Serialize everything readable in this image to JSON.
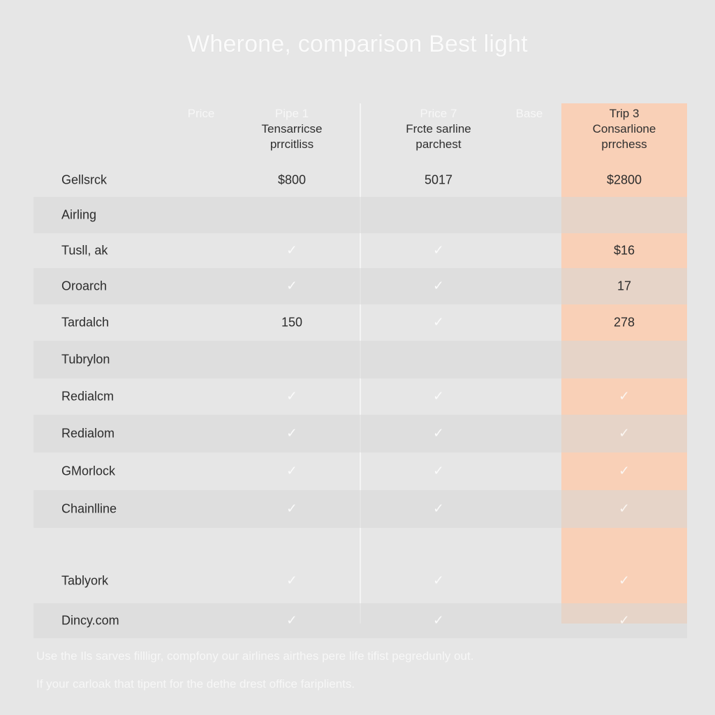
{
  "title": "Wherone, comparison Best light",
  "header": {
    "price_label": "Price",
    "base_label": "Base",
    "columns": [
      {
        "kicker": "Pipe 1",
        "line1": "Tensarricse",
        "line2": "prrcitliss"
      },
      {
        "kicker": "Price 7",
        "line1": "Frcte sarline",
        "line2": "parchest"
      },
      {
        "kicker": "Trip 3",
        "line1": "Consarlione",
        "line2": "prrchess"
      }
    ]
  },
  "rows": [
    {
      "label": "Gellsrck",
      "values": [
        "$800",
        "5017",
        "$2800"
      ]
    },
    {
      "label": "Airling",
      "values": [
        "",
        "",
        ""
      ]
    },
    {
      "label": "Tusll, ak",
      "values": [
        "✓",
        "✓",
        "$16"
      ]
    },
    {
      "label": "Oroarch",
      "values": [
        "✓",
        "✓",
        "17"
      ]
    },
    {
      "label": "Tardalch",
      "values": [
        "150",
        "✓",
        "278"
      ]
    },
    {
      "label": "Tubrylon",
      "values": [
        "",
        "",
        ""
      ]
    },
    {
      "label": "Redialcm",
      "values": [
        "✓",
        "✓",
        "✓"
      ]
    },
    {
      "label": "Redialom",
      "values": [
        "✓",
        "✓",
        "✓"
      ]
    },
    {
      "label": "GMorlock",
      "values": [
        "✓",
        "✓",
        "✓"
      ]
    },
    {
      "label": "Chainlline",
      "values": [
        "✓",
        "✓",
        "✓"
      ]
    },
    {
      "label": "Tablyork",
      "values": [
        "✓",
        "✓",
        "✓"
      ]
    },
    {
      "label": "Dincy.com",
      "values": [
        "✓",
        "✓",
        "✓"
      ]
    }
  ],
  "footer": {
    "line1": "Use the Ils sarves fillligr, compfony our airlines airthes pere life tifist pegredunly out.",
    "line2": "If your carloak that tipent for the dethe drest office fariplients."
  },
  "colors": {
    "background": "#e6e6e6",
    "highlight_column": "#f9d0b7",
    "title_text": "#fbfbfb"
  }
}
